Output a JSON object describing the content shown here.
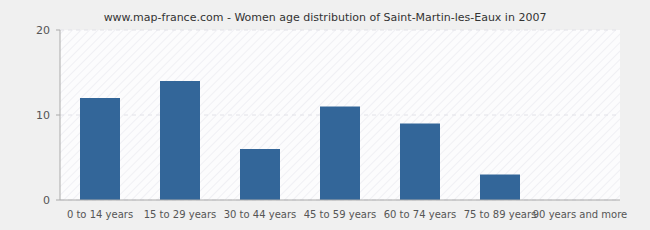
{
  "chart_data": {
    "type": "bar",
    "title": "www.map-france.com - Women age distribution of Saint-Martin-les-Eaux in 2007",
    "categories": [
      "0 to 14 years",
      "15 to 29 years",
      "30 to 44 years",
      "45 to 59 years",
      "60 to 74 years",
      "75 to 89 years",
      "90 years and more"
    ],
    "values": [
      12,
      14,
      6,
      11,
      9,
      3,
      0
    ],
    "color": "#336699",
    "ylim": [
      0,
      20
    ],
    "yticks": [
      0,
      10,
      20
    ],
    "grid": true
  }
}
